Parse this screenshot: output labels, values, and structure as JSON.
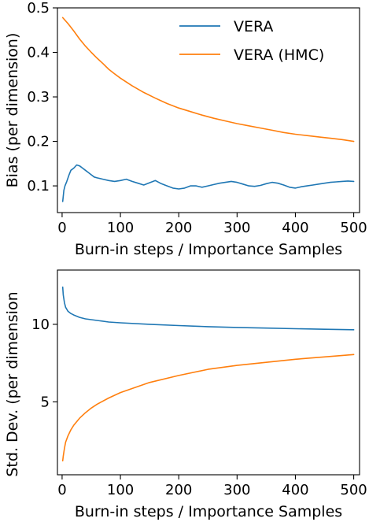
{
  "chart_data": [
    {
      "type": "line",
      "title": "",
      "xlabel": "Burn-in steps / Importance Samples",
      "ylabel": "Bias (per dimension)",
      "xlim": [
        -8,
        510
      ],
      "ylim": [
        0.04,
        0.5
      ],
      "xticks": [
        0,
        100,
        200,
        300,
        400,
        500
      ],
      "xtick_labels": [
        "0",
        "100",
        "200",
        "300",
        "400",
        "500"
      ],
      "yticks": [
        0.1,
        0.2,
        0.3,
        0.4,
        0.5
      ],
      "ytick_labels": [
        "0.1",
        "0.2",
        "0.3",
        "0.4",
        "0.5"
      ],
      "grid": false,
      "legend": {
        "placement": "top-right",
        "entries": [
          "VERA",
          "VERA (HMC)"
        ]
      },
      "series": [
        {
          "name": "VERA",
          "color": "#1f77b4",
          "x": [
            1,
            3,
            5,
            8,
            12,
            15,
            20,
            25,
            30,
            35,
            40,
            45,
            50,
            55,
            60,
            70,
            80,
            90,
            100,
            110,
            120,
            130,
            140,
            150,
            160,
            170,
            180,
            190,
            200,
            210,
            220,
            230,
            240,
            250,
            260,
            270,
            280,
            290,
            300,
            310,
            320,
            330,
            340,
            350,
            360,
            370,
            380,
            390,
            400,
            410,
            420,
            430,
            440,
            450,
            460,
            470,
            480,
            490,
            500
          ],
          "y": [
            0.065,
            0.09,
            0.1,
            0.11,
            0.125,
            0.135,
            0.14,
            0.147,
            0.145,
            0.14,
            0.135,
            0.13,
            0.125,
            0.12,
            0.118,
            0.115,
            0.112,
            0.11,
            0.112,
            0.115,
            0.11,
            0.106,
            0.102,
            0.107,
            0.112,
            0.105,
            0.1,
            0.095,
            0.093,
            0.095,
            0.1,
            0.1,
            0.097,
            0.1,
            0.103,
            0.106,
            0.108,
            0.11,
            0.108,
            0.104,
            0.1,
            0.099,
            0.101,
            0.105,
            0.108,
            0.106,
            0.102,
            0.097,
            0.095,
            0.098,
            0.1,
            0.102,
            0.104,
            0.106,
            0.108,
            0.109,
            0.11,
            0.111,
            0.11
          ]
        },
        {
          "name": "VERA (HMC)",
          "color": "#ff7f0e",
          "x": [
            1,
            10,
            20,
            30,
            40,
            50,
            60,
            70,
            80,
            90,
            100,
            120,
            140,
            160,
            180,
            200,
            220,
            240,
            260,
            280,
            300,
            320,
            340,
            360,
            380,
            400,
            420,
            440,
            460,
            480,
            500
          ],
          "y": [
            0.478,
            0.465,
            0.448,
            0.43,
            0.414,
            0.4,
            0.387,
            0.375,
            0.362,
            0.352,
            0.342,
            0.325,
            0.31,
            0.297,
            0.285,
            0.275,
            0.267,
            0.259,
            0.252,
            0.246,
            0.24,
            0.235,
            0.23,
            0.225,
            0.22,
            0.216,
            0.213,
            0.21,
            0.207,
            0.204,
            0.2
          ]
        }
      ]
    },
    {
      "type": "line",
      "title": "",
      "xlabel": "Burn-in steps / Importance Samples",
      "ylabel": "Std. Dev. (per dimension",
      "xlim": [
        -8,
        510
      ],
      "ylim": [
        0.3,
        13.5
      ],
      "xticks": [
        0,
        100,
        200,
        300,
        400,
        500
      ],
      "xtick_labels": [
        "0",
        "100",
        "200",
        "300",
        "400",
        "500"
      ],
      "yticks": [
        5,
        10
      ],
      "ytick_labels": [
        "5",
        "10"
      ],
      "grid": false,
      "series": [
        {
          "name": "VERA",
          "color": "#1f77b4",
          "x": [
            1,
            2,
            4,
            6,
            10,
            15,
            20,
            30,
            40,
            50,
            60,
            80,
            100,
            150,
            200,
            250,
            300,
            350,
            400,
            450,
            500
          ],
          "y": [
            12.4,
            11.9,
            11.4,
            11.1,
            10.85,
            10.7,
            10.6,
            10.45,
            10.35,
            10.3,
            10.25,
            10.15,
            10.1,
            10.0,
            9.92,
            9.85,
            9.8,
            9.76,
            9.72,
            9.68,
            9.65
          ]
        },
        {
          "name": "VERA (HMC)",
          "color": "#ff7f0e",
          "x": [
            1,
            2,
            4,
            6,
            10,
            15,
            20,
            30,
            40,
            50,
            60,
            80,
            100,
            150,
            200,
            250,
            300,
            350,
            400,
            450,
            500
          ],
          "y": [
            1.2,
            1.5,
            2.0,
            2.4,
            2.8,
            3.2,
            3.5,
            3.95,
            4.3,
            4.6,
            4.85,
            5.25,
            5.6,
            6.25,
            6.7,
            7.1,
            7.35,
            7.55,
            7.75,
            7.9,
            8.05
          ]
        }
      ]
    }
  ]
}
